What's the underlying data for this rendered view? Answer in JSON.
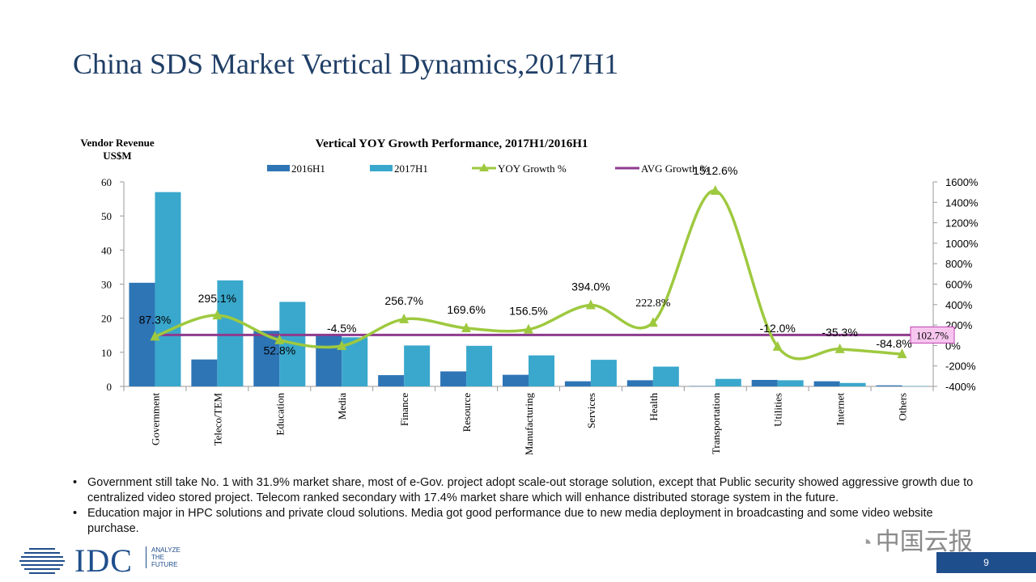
{
  "slide": {
    "title": "China SDS Market Vertical Dynamics,2017H1",
    "bullets": [
      "Government still take No. 1 with 31.9% market share, most of e-Gov. project adopt scale-out storage solution, except that Public security showed aggressive growth due to centralized video stored project. Telecom ranked secondary with 17.4% market share which will enhance distributed storage system in the future.",
      "Education major in HPC solutions and private cloud solutions. Media got good performance due to new media deployment in broadcasting and some video website purchase."
    ],
    "page_number": "9"
  },
  "footer": {
    "logo_text": "IDC",
    "tagline": [
      "ANALYZE",
      "THE",
      "FUTURE"
    ],
    "watermark": "中国云报",
    "watermark_icon": "wechat-icon"
  },
  "chart_data": {
    "type": "bar",
    "title": "Vertical YOY Growth Performance, 2017H1/2016H1",
    "ylabel_left": [
      "Vendor Revenue",
      "US$M"
    ],
    "ylim_left": [
      0,
      60
    ],
    "yticks_left": [
      "0",
      "10",
      "20",
      "30",
      "40",
      "50",
      "60"
    ],
    "ylim_right": [
      -400,
      1600
    ],
    "yticks_right": [
      "-400%",
      "-200%",
      "0%",
      "200%",
      "400%",
      "600%",
      "800%",
      "1000%",
      "1200%",
      "1400%",
      "1600%"
    ],
    "categories": [
      "Government",
      "Teleco/TEM",
      "Education",
      "Media",
      "Finance",
      "Resource",
      "Manufacturing",
      "Services",
      "Health",
      "Transportation",
      "Utilities",
      "Internet",
      "Others"
    ],
    "series": [
      {
        "name": "2016H1",
        "type": "bar",
        "axis": "left",
        "color": "#2e75b6",
        "values": [
          30.4,
          7.9,
          16.3,
          15.0,
          3.3,
          4.4,
          3.4,
          1.5,
          1.8,
          0.1,
          1.9,
          1.5,
          0.3
        ]
      },
      {
        "name": "2017H1",
        "type": "bar",
        "axis": "left",
        "color": "#3aa8cc",
        "values": [
          57.0,
          31.1,
          24.8,
          14.4,
          12.0,
          11.9,
          9.1,
          7.8,
          5.8,
          2.2,
          1.8,
          1.0,
          0.1
        ]
      },
      {
        "name": "YOY Growth %",
        "type": "line",
        "axis": "right",
        "color": "#9ec93f",
        "values": [
          87.3,
          295.1,
          52.8,
          -4.5,
          256.7,
          169.6,
          156.5,
          394.0,
          222.8,
          1512.6,
          -12.0,
          -35.3,
          -84.8
        ],
        "labels": [
          "87.3%",
          "295.1%",
          "52.8%",
          "-4.5%",
          "256.7%",
          "169.6%",
          "156.5%",
          "394.0%",
          "222.8%",
          "1512.6%",
          "-12.0%",
          "-35.3%",
          "-84.8%"
        ]
      },
      {
        "name": "AVG Growth %",
        "type": "line",
        "axis": "right",
        "color": "#8e3a8e",
        "value": 102.7,
        "label": "102.7%"
      }
    ],
    "legend_position": "top"
  }
}
